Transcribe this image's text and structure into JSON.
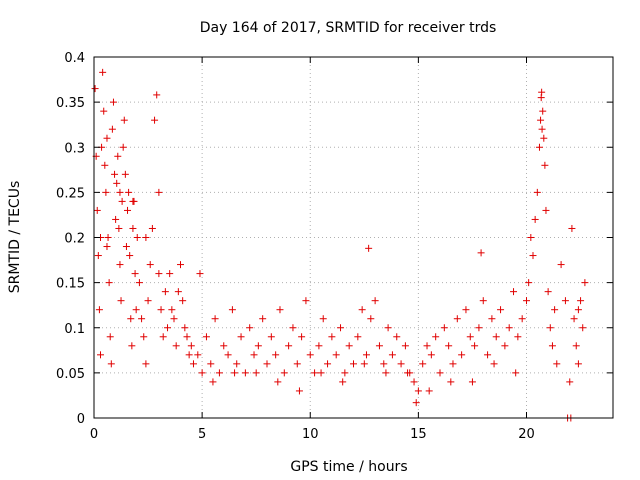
{
  "chart_data": {
    "type": "scatter",
    "title": "Day 164 of 2017, SRMTID for receiver trds",
    "xlabel": "GPS time / hours",
    "ylabel": "SRMTID / TECUs",
    "xlim": [
      0,
      24
    ],
    "ylim": [
      0,
      0.4
    ],
    "xticks": [
      0,
      5,
      10,
      15,
      20
    ],
    "xtick_labels": [
      "0",
      "5",
      "10",
      "15",
      "20"
    ],
    "yticks": [
      0,
      0.05,
      0.1,
      0.15,
      0.2,
      0.25,
      0.3,
      0.35,
      0.4
    ],
    "ytick_labels": [
      "0",
      "0.05",
      "0.1",
      "0.15",
      "0.2",
      "0.25",
      "0.3",
      "0.35",
      "0.4"
    ],
    "grid": true,
    "marker": "plus",
    "color": "#e00000",
    "series": [
      {
        "name": "SRMTID",
        "x": [
          0.05,
          0.1,
          0.15,
          0.2,
          0.25,
          0.3,
          0.35,
          0.4,
          0.45,
          0.5,
          0.55,
          0.6,
          0.65,
          0.7,
          0.75,
          0.8,
          0.85,
          0.9,
          0.95,
          1.0,
          1.05,
          1.1,
          1.15,
          1.2,
          1.25,
          1.3,
          1.35,
          1.4,
          1.45,
          1.5,
          1.55,
          1.6,
          1.65,
          1.7,
          1.75,
          1.8,
          1.85,
          1.9,
          1.95,
          2.0,
          2.1,
          2.2,
          2.3,
          2.4,
          2.5,
          2.6,
          2.7,
          2.8,
          2.9,
          3.0,
          3.1,
          3.2,
          3.3,
          3.4,
          3.5,
          3.6,
          3.7,
          3.8,
          3.9,
          4.0,
          4.1,
          4.2,
          4.3,
          4.4,
          4.5,
          4.6,
          4.8,
          5.0,
          5.2,
          5.4,
          5.6,
          5.8,
          6.0,
          6.2,
          6.4,
          6.6,
          6.8,
          7.0,
          7.2,
          7.4,
          7.6,
          7.8,
          8.0,
          8.2,
          8.4,
          8.6,
          8.8,
          9.0,
          9.2,
          9.4,
          9.6,
          9.8,
          10.0,
          10.2,
          10.4,
          10.6,
          10.8,
          11.0,
          11.2,
          11.4,
          11.6,
          11.8,
          12.0,
          12.2,
          12.4,
          12.6,
          12.8,
          13.0,
          13.2,
          13.4,
          13.6,
          13.8,
          14.0,
          14.2,
          14.4,
          14.6,
          14.8,
          15.0,
          15.2,
          15.4,
          15.6,
          15.8,
          16.0,
          16.2,
          16.4,
          16.6,
          16.8,
          17.0,
          17.2,
          17.4,
          17.6,
          17.8,
          18.0,
          18.2,
          18.4,
          18.6,
          18.8,
          19.0,
          19.2,
          19.4,
          19.6,
          19.8,
          20.0,
          20.1,
          20.2,
          20.3,
          20.4,
          20.5,
          20.6,
          20.65,
          20.7,
          20.75,
          20.8,
          20.85,
          20.9,
          21.0,
          21.1,
          21.2,
          21.3,
          21.4,
          21.6,
          21.8,
          22.0,
          22.1,
          22.2,
          22.3,
          22.4,
          22.5,
          22.6,
          22.7,
          0.3,
          0.6,
          1.2,
          1.8,
          2.4,
          3.0,
          12.7,
          17.9,
          20.68,
          20.72,
          6.5,
          8.5,
          10.5,
          12.5,
          14.5,
          16.5,
          18.5,
          5.5,
          7.5,
          9.5,
          11.5,
          13.5,
          15.5,
          17.5,
          19.5,
          4.9,
          14.9,
          21.9,
          22.05,
          22.4
        ],
        "y": [
          0.365,
          0.29,
          0.23,
          0.18,
          0.12,
          0.07,
          0.3,
          0.383,
          0.34,
          0.28,
          0.25,
          0.31,
          0.2,
          0.15,
          0.09,
          0.06,
          0.32,
          0.35,
          0.27,
          0.22,
          0.26,
          0.29,
          0.21,
          0.17,
          0.13,
          0.24,
          0.3,
          0.33,
          0.27,
          0.19,
          0.23,
          0.25,
          0.18,
          0.11,
          0.08,
          0.21,
          0.24,
          0.16,
          0.12,
          0.2,
          0.15,
          0.11,
          0.09,
          0.06,
          0.13,
          0.17,
          0.21,
          0.33,
          0.358,
          0.25,
          0.12,
          0.09,
          0.14,
          0.1,
          0.16,
          0.12,
          0.11,
          0.08,
          0.14,
          0.17,
          0.13,
          0.1,
          0.09,
          0.07,
          0.08,
          0.06,
          0.07,
          0.05,
          0.09,
          0.06,
          0.11,
          0.05,
          0.08,
          0.07,
          0.12,
          0.06,
          0.09,
          0.05,
          0.1,
          0.07,
          0.08,
          0.11,
          0.06,
          0.09,
          0.07,
          0.12,
          0.05,
          0.08,
          0.1,
          0.06,
          0.09,
          0.13,
          0.07,
          0.05,
          0.08,
          0.11,
          0.06,
          0.09,
          0.07,
          0.1,
          0.05,
          0.08,
          0.06,
          0.09,
          0.12,
          0.07,
          0.11,
          0.13,
          0.08,
          0.06,
          0.1,
          0.07,
          0.09,
          0.06,
          0.08,
          0.05,
          0.04,
          0.03,
          0.06,
          0.08,
          0.07,
          0.09,
          0.05,
          0.1,
          0.08,
          0.06,
          0.11,
          0.07,
          0.12,
          0.09,
          0.08,
          0.1,
          0.13,
          0.07,
          0.11,
          0.09,
          0.12,
          0.08,
          0.1,
          0.14,
          0.09,
          0.11,
          0.13,
          0.15,
          0.2,
          0.18,
          0.22,
          0.25,
          0.3,
          0.33,
          0.361,
          0.34,
          0.31,
          0.28,
          0.23,
          0.14,
          0.1,
          0.08,
          0.12,
          0.06,
          0.17,
          0.13,
          0.04,
          0.21,
          0.11,
          0.08,
          0.06,
          0.13,
          0.1,
          0.15,
          0.2,
          0.19,
          0.25,
          0.24,
          0.2,
          0.16,
          0.188,
          0.183,
          0.355,
          0.32,
          0.05,
          0.04,
          0.05,
          0.06,
          0.05,
          0.04,
          0.06,
          0.04,
          0.05,
          0.03,
          0.04,
          0.05,
          0.03,
          0.04,
          0.05,
          0.16,
          0.017,
          0.0,
          0.0,
          0.12
        ]
      }
    ]
  }
}
